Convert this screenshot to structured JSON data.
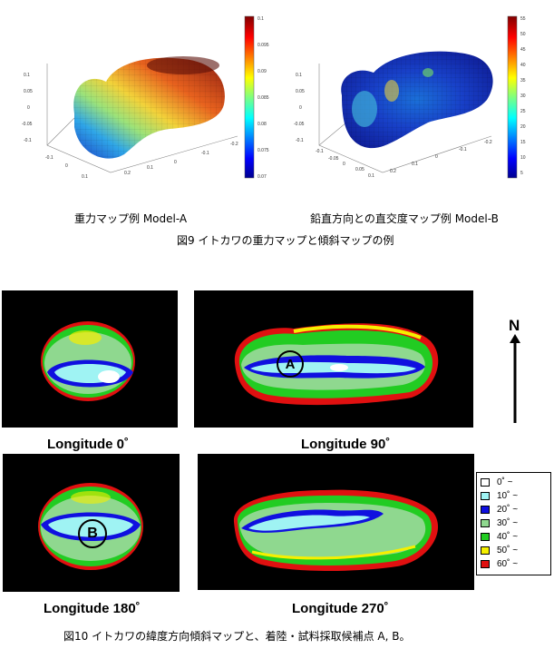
{
  "figure9": {
    "caption": "図9 イトカワの重力マップと傾斜マップの例",
    "left": {
      "caption": "重力マップ例 Model-A",
      "colorbar_ticks": [
        "0.1",
        "0.095",
        "0.09",
        "0.085",
        "0.08",
        "0.075",
        "0.07"
      ],
      "axis_ticks": {
        "z": [
          "0.1",
          "0.05",
          "0",
          "-0.05",
          "-0.1"
        ],
        "x": [
          "-0.2",
          "-0.1",
          "0",
          "0.1",
          "0.2"
        ],
        "y": [
          "-0.1",
          "0",
          "0.1"
        ]
      }
    },
    "right": {
      "caption": "鉛直方向との直交度マップ例 Model-B",
      "colorbar_ticks": [
        "55",
        "50",
        "45",
        "40",
        "35",
        "30",
        "25",
        "20",
        "15",
        "10",
        "5"
      ],
      "axis_ticks": {
        "z": [
          "0.1",
          "0.05",
          "0",
          "-0.05",
          "-0.1"
        ],
        "x": [
          "-0.2",
          "-0.1",
          "0",
          "0.1",
          "0.2"
        ],
        "y": [
          "-0.1",
          "-0.05",
          "0",
          "0.05",
          "0.1"
        ]
      }
    }
  },
  "figure10": {
    "caption": "図10 イトカワの緯度方向傾斜マップと、着陸・試料採取候補点 A, B。",
    "panels": {
      "lon0": "Longitude 0˚",
      "lon90": "Longitude 90˚",
      "lon180": "Longitude 180˚",
      "lon270": "Longitude 270˚"
    },
    "markers": {
      "a": "A",
      "b": "B"
    },
    "north_label": "N",
    "legend": [
      {
        "label": "0˚ ~",
        "color": "#ffffff"
      },
      {
        "label": "10˚ ~",
        "color": "#9ff3f3"
      },
      {
        "label": "20˚ ~",
        "color": "#1010e0"
      },
      {
        "label": "30˚ ~",
        "color": "#8fd88f"
      },
      {
        "label": "40˚ ~",
        "color": "#22cc22"
      },
      {
        "label": "50˚ ~",
        "color": "#f5f000"
      },
      {
        "label": "60˚ ~",
        "color": "#e01010"
      }
    ]
  }
}
